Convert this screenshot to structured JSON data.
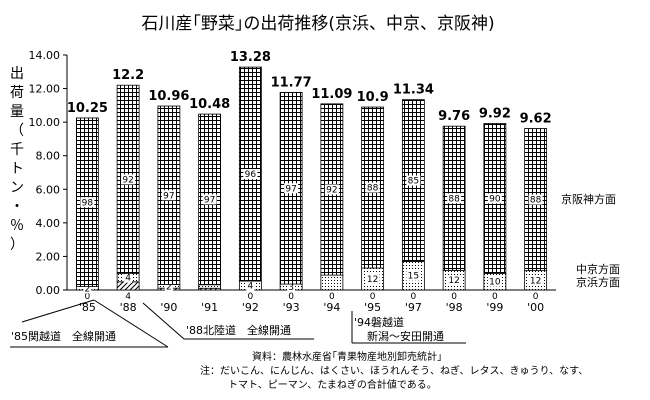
{
  "chart_data": {
    "type": "bar",
    "stacked": true,
    "title": "石川産｢野菜｣の出荷推移(京浜、中京、京阪神)",
    "ylabel_chars": [
      "出",
      "荷",
      "量",
      "（",
      "千",
      "ト",
      "ン",
      "・",
      "％",
      "）"
    ],
    "ylim": [
      0,
      14
    ],
    "yticks": [
      "0.00",
      "2.00",
      "4.00",
      "6.00",
      "8.00",
      "10.00",
      "12.00",
      "14.00"
    ],
    "categories": [
      "'85",
      "'88",
      "'90",
      "'91",
      "'92",
      "'93",
      "'94",
      "'95",
      "'97",
      "'98",
      "'99",
      "'00"
    ],
    "totals": [
      10.25,
      12.2,
      10.96,
      10.48,
      13.28,
      11.77,
      11.09,
      10.9,
      11.34,
      9.76,
      9.92,
      9.62
    ],
    "total_labels": [
      "10.25",
      "12.2",
      "10.96",
      "10.48",
      "13.28",
      "11.77",
      "11.09",
      "10.9",
      "11.34",
      "9.76",
      "9.92",
      "9.62"
    ],
    "series": [
      {
        "name": "京浜方面",
        "pct": [
          0,
          4,
          1,
          1,
          0,
          0,
          0,
          0,
          0,
          0,
          0,
          0
        ],
        "pct_labels": [
          "0",
          "4",
          "",
          "",
          "0",
          "0",
          "0",
          "0",
          "0",
          "0",
          "0",
          "0"
        ]
      },
      {
        "name": "中京方面",
        "pct": [
          2,
          4,
          2,
          2,
          4,
          3,
          8,
          12,
          15,
          12,
          10,
          12
        ],
        "pct_labels": [
          "2",
          "4",
          "2",
          "",
          "4",
          "3",
          "",
          "12",
          "15",
          "12",
          "10",
          "12"
        ]
      },
      {
        "name": "京阪神方面",
        "pct": [
          98,
          92,
          97,
          97,
          96,
          97,
          92,
          88,
          85,
          88,
          90,
          88
        ],
        "pct_labels": [
          "98",
          "92",
          "97",
          "97",
          "96",
          "97",
          "92",
          "88",
          "85",
          "88",
          "90",
          "88"
        ]
      }
    ],
    "legend": [
      "京阪神方面",
      "中京方面",
      "京浜方面"
    ],
    "grid": false,
    "annotations": [
      "'85関越道　全線開通",
      "'88北陸道　全線開通",
      "'94磐越道",
      "新潟～安田開通"
    ],
    "source_note": "資料：農林水産省｢青果物産地別卸売統計｣",
    "note_lines": [
      "注：だいこん、にんじん、はくさい、ほうれんそう、ねぎ、レタス、きゅうり、なす、",
      "トマト、ピーマン、たまねぎの合計値である。"
    ]
  }
}
